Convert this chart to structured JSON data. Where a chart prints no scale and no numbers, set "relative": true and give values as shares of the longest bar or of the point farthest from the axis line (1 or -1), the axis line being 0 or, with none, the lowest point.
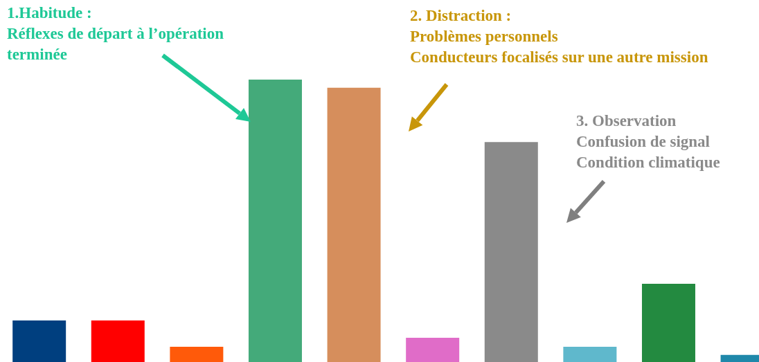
{
  "chart_data": {
    "type": "bar",
    "relative": true,
    "categories": [
      null,
      null,
      null,
      null,
      null,
      null,
      null,
      null,
      null,
      null
    ],
    "values": [
      0.147,
      0.147,
      0.054,
      1,
      0.971,
      0.086,
      0.779,
      0.054,
      0.277,
      0.025
    ],
    "colors": [
      "#003f7f",
      "#ff0000",
      "#ff5a0a",
      "#44aa7a",
      "#d68e5c",
      "#e06cc8",
      "#8a8a8a",
      "#5fb8cc",
      "#238a40",
      "#1f88aa"
    ],
    "annotations": [
      "1.Habitude :\nRéflexes de départ à l’opération\nterminée",
      "2. Distraction :\nProblèmes personnels\nConducteurs focalisés sur une autre mission",
      "3. Observation\nConfusion de signal\nCondition climatique"
    ]
  }
}
